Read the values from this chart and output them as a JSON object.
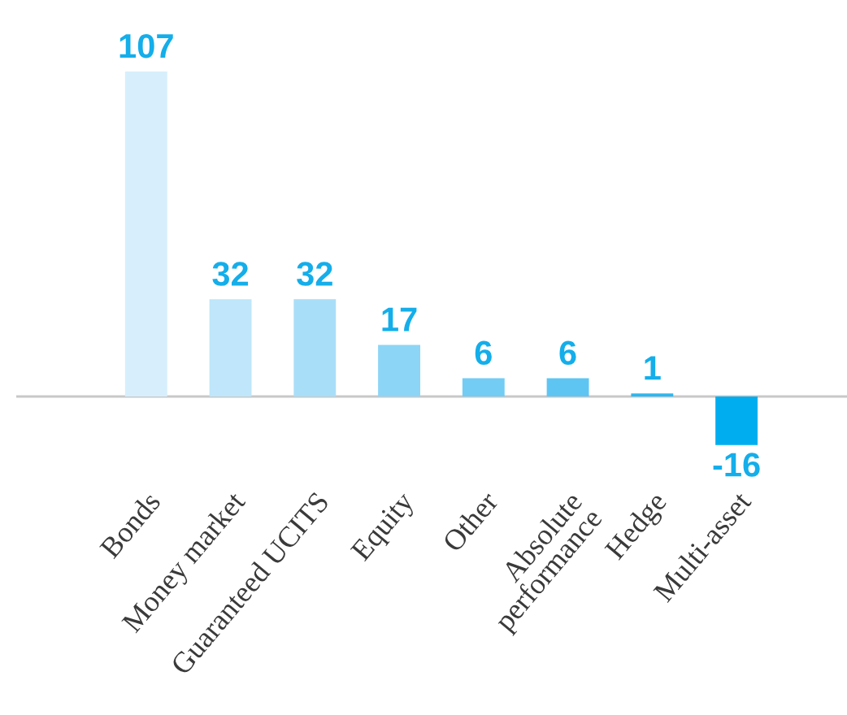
{
  "chart_data": {
    "type": "bar",
    "categories": [
      "Bonds",
      "Money market",
      "Guaranteed UCITS",
      "Equity",
      "Other",
      "Absolute\nperformance",
      "Hedge",
      "Multi-asset"
    ],
    "values": [
      107,
      32,
      32,
      17,
      6,
      6,
      1,
      -16
    ],
    "colors": [
      "#d7effc",
      "#bfe6fa",
      "#a9def8",
      "#8cd5f6",
      "#72ccf4",
      "#5ec5f3",
      "#2cb7ef",
      "#00aeef"
    ],
    "data_labels": true,
    "tick_labels": "x"
  }
}
